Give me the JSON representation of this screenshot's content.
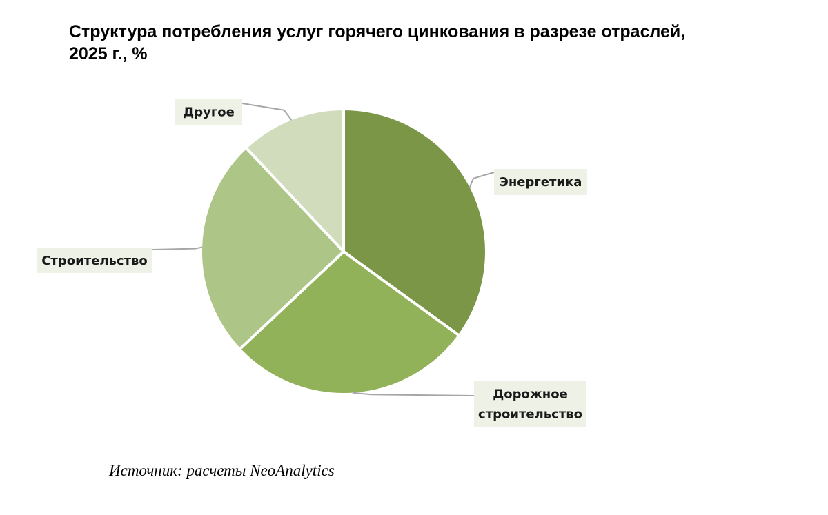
{
  "chart_title": {
    "line1": "Структура потребления услуг горячего цинкования в разрезе отраслей,",
    "line2": "2025 г., %"
  },
  "source": "Источник: расчеты NeoAnalytics",
  "chart_data": {
    "type": "pie",
    "title": "Структура потребления услуг горячего цинкования в разрезе отраслей, 2025 г., %",
    "slices": [
      {
        "label": [
          "Энергетика"
        ],
        "value": 35,
        "color": "#7b9646"
      },
      {
        "label": [
          "Дорожное",
          "строительство"
        ],
        "value": 28,
        "color": "#92b25a"
      },
      {
        "label": [
          "Строительство"
        ],
        "value": 25,
        "color": "#adc688"
      },
      {
        "label": [
          "Другое"
        ],
        "value": 12,
        "color": "#d0dcbb"
      }
    ],
    "start_angle_deg": 0,
    "direction": "clockwise",
    "data_labels": "outside-with-leader-lines",
    "label_box_color": "#eef2e6",
    "leader_color": "#a6a6a6",
    "legend": "none"
  }
}
